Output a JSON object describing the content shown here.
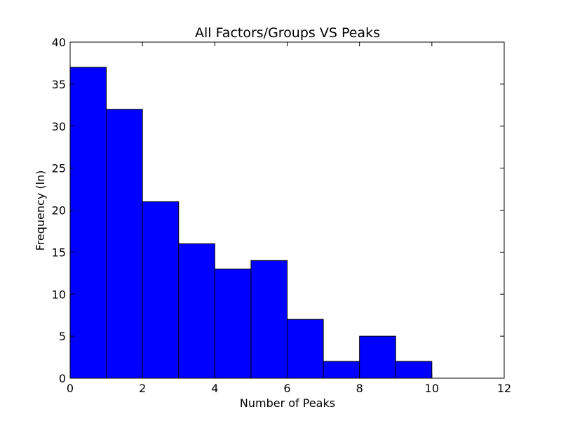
{
  "chart_data": {
    "type": "bar",
    "title": "All Factors/Groups VS Peaks",
    "xlabel": "Number of Peaks",
    "ylabel": "Frequency (ln)",
    "xlim": [
      0,
      12
    ],
    "ylim": [
      0,
      40
    ],
    "xticks": [
      "0",
      "2",
      "4",
      "6",
      "8",
      "10",
      "12"
    ],
    "yticks": [
      "0",
      "5",
      "10",
      "15",
      "20",
      "25",
      "30",
      "35",
      "40"
    ],
    "bins": [
      {
        "x0": 0,
        "x1": 1,
        "value": 37
      },
      {
        "x0": 1,
        "x1": 2,
        "value": 32
      },
      {
        "x0": 2,
        "x1": 3,
        "value": 21
      },
      {
        "x0": 3,
        "x1": 4,
        "value": 16
      },
      {
        "x0": 4,
        "x1": 5,
        "value": 13
      },
      {
        "x0": 5,
        "x1": 6,
        "value": 14
      },
      {
        "x0": 6,
        "x1": 7,
        "value": 7
      },
      {
        "x0": 7,
        "x1": 8,
        "value": 2
      },
      {
        "x0": 8,
        "x1": 9,
        "value": 5
      },
      {
        "x0": 9,
        "x1": 10,
        "value": 2
      }
    ],
    "bar_color": "#0000ff",
    "edge_color": "#000000",
    "grid": false
  }
}
